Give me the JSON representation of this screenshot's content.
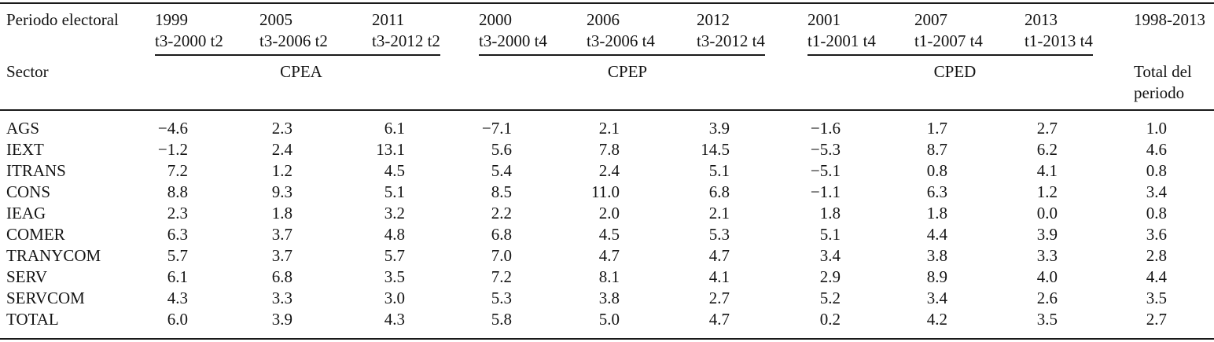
{
  "table": {
    "header": {
      "row1_label": "Periodo electoral",
      "row2_label": "Sector",
      "total_header": "1998-2013",
      "total_sublabel": "Total del periodo",
      "groups": [
        {
          "name": "CPEA",
          "columns": [
            {
              "year": "1999",
              "range": "t3-2000 t2"
            },
            {
              "year": "2005",
              "range": "t3-2006 t2"
            },
            {
              "year": "2011",
              "range": "t3-2012 t2"
            }
          ]
        },
        {
          "name": "CPEP",
          "columns": [
            {
              "year": "2000",
              "range": "t3-2000 t4"
            },
            {
              "year": "2006",
              "range": "t3-2006 t4"
            },
            {
              "year": "2012",
              "range": "t3-2012 t4"
            }
          ]
        },
        {
          "name": "CPED",
          "columns": [
            {
              "year": "2001",
              "range": "t1-2001 t4"
            },
            {
              "year": "2007",
              "range": "t1-2007 t4"
            },
            {
              "year": "2013",
              "range": "t1-2013 t4"
            }
          ]
        }
      ]
    },
    "rows": [
      {
        "sector": "AGS",
        "values": [
          "−4.6",
          "2.3",
          "6.1",
          "−7.1",
          "2.1",
          "3.9",
          "−1.6",
          "1.7",
          "2.7",
          "1.0"
        ]
      },
      {
        "sector": "IEXT",
        "values": [
          "−1.2",
          "2.4",
          "13.1",
          "5.6",
          "7.8",
          "14.5",
          "−5.3",
          "8.7",
          "6.2",
          "4.6"
        ]
      },
      {
        "sector": "ITRANS",
        "values": [
          "7.2",
          "1.2",
          "4.5",
          "5.4",
          "2.4",
          "5.1",
          "−5.1",
          "0.8",
          "4.1",
          "0.8"
        ]
      },
      {
        "sector": "CONS",
        "values": [
          "8.8",
          "9.3",
          "5.1",
          "8.5",
          "11.0",
          "6.8",
          "−1.1",
          "6.3",
          "1.2",
          "3.4"
        ]
      },
      {
        "sector": "IEAG",
        "values": [
          "2.3",
          "1.8",
          "3.2",
          "2.2",
          "2.0",
          "2.1",
          "1.8",
          "1.8",
          "0.0",
          "0.8"
        ]
      },
      {
        "sector": "COMER",
        "values": [
          "6.3",
          "3.7",
          "4.8",
          "6.8",
          "4.5",
          "5.3",
          "5.1",
          "4.4",
          "3.9",
          "3.6"
        ]
      },
      {
        "sector": "TRANYCOM",
        "values": [
          "5.7",
          "3.7",
          "5.7",
          "7.0",
          "4.7",
          "4.7",
          "3.4",
          "3.8",
          "3.3",
          "2.8"
        ]
      },
      {
        "sector": "SERV",
        "values": [
          "6.1",
          "6.8",
          "3.5",
          "7.2",
          "8.1",
          "4.1",
          "2.9",
          "8.9",
          "4.0",
          "4.4"
        ]
      },
      {
        "sector": "SERVCOM",
        "values": [
          "4.3",
          "3.3",
          "3.0",
          "5.3",
          "3.8",
          "2.7",
          "5.2",
          "3.4",
          "2.6",
          "3.5"
        ]
      },
      {
        "sector": "TOTAL",
        "values": [
          "6.0",
          "3.9",
          "4.3",
          "5.8",
          "5.0",
          "4.7",
          "0.2",
          "4.2",
          "3.5",
          "2.7"
        ]
      }
    ]
  }
}
